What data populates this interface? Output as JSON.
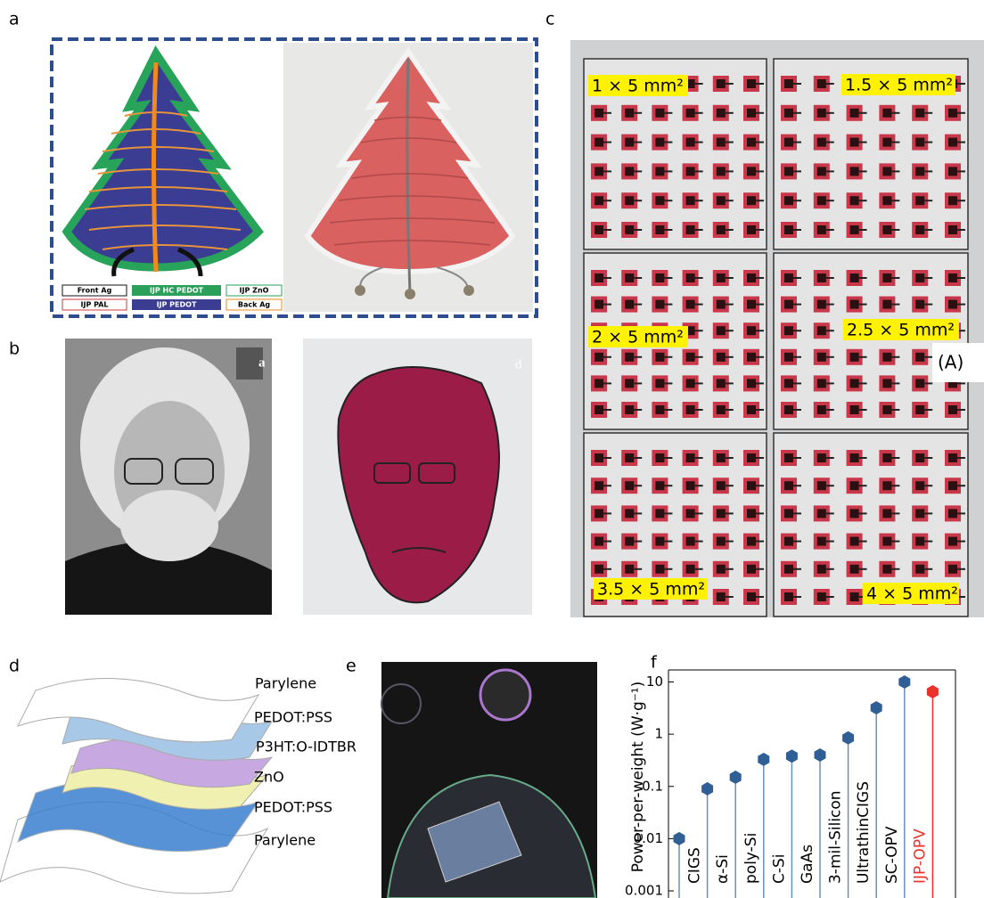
{
  "panels": {
    "a": {
      "label": "a",
      "legend": [
        "Front Ag",
        "IJP HC PEDOT",
        "IJP ZnO",
        "IJP PAL",
        "IJP PEDOT",
        "Back Ag"
      ]
    },
    "b": {
      "label": "b",
      "photo_labels": [
        "a",
        "d"
      ]
    },
    "c": {
      "label": "c",
      "cell_sizes": [
        "1 × 5 mm²",
        "1.5 × 5 mm²",
        "2 × 5 mm²",
        "2.5 × 5 mm²",
        "3.5 × 5 mm²",
        "4 × 5 mm²"
      ],
      "tag": "(A)"
    },
    "d": {
      "label": "d",
      "layers": [
        "Parylene",
        "PEDOT:PSS",
        "P3HT:O-IDTBR",
        "ZnO",
        "PEDOT:PSS",
        "Parylene"
      ]
    },
    "e": {
      "label": "e"
    },
    "f": {
      "label": "f"
    }
  },
  "chart_data": {
    "type": "lollipop",
    "y_label": "Power-per-weight (W·g⁻¹)",
    "categories": [
      null,
      "CIGS",
      "α-Si",
      "poly-Si",
      "C-Si",
      "GaAs",
      "3-mil-Silicon",
      "UltrathinCIGS",
      "SC-OPV",
      "IJP-OPV"
    ],
    "values": [
      0.01,
      0.09,
      0.15,
      0.33,
      0.38,
      0.4,
      0.85,
      3.2,
      10,
      6.5
    ],
    "colors": [
      "#2f5f95",
      "#2f5f95",
      "#2f5f95",
      "#2f5f95",
      "#2f5f95",
      "#2f5f95",
      "#2f5f95",
      "#2f5f95",
      "#2f5f95",
      "#e8322a"
    ],
    "log_y": true,
    "ylim": [
      0.001,
      17
    ],
    "yticks": [
      0.001,
      0.01,
      0.1,
      1,
      10
    ]
  }
}
